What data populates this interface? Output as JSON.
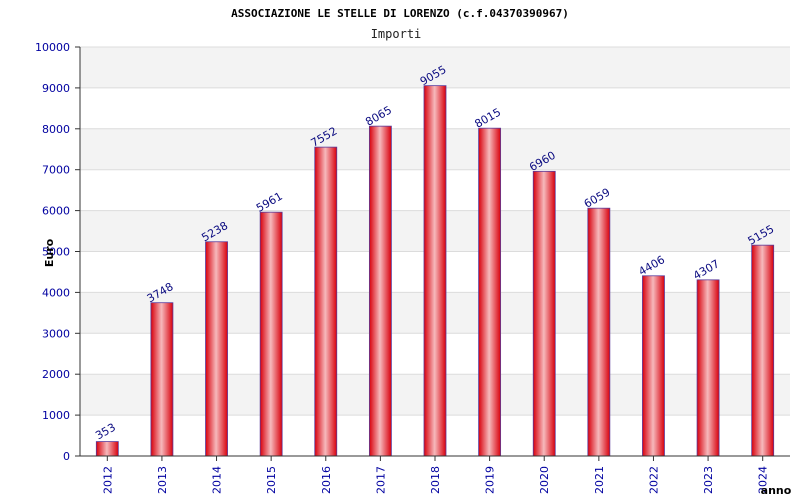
{
  "chart_data": {
    "type": "bar",
    "title": "ASSOCIAZIONE LE STELLE DI LORENZO (c.f.04370390967)",
    "subtitle": "Importi",
    "xlabel": "anno",
    "ylabel": "Euro",
    "categories": [
      "2012",
      "2013",
      "2014",
      "2015",
      "2016",
      "2017",
      "2018",
      "2019",
      "2020",
      "2021",
      "2022",
      "2023",
      "2024"
    ],
    "series": [
      {
        "values": [
          353,
          3748,
          5238,
          5961,
          7552,
          8065,
          9055,
          8015,
          6960,
          6059,
          4406,
          4307,
          5155
        ]
      }
    ],
    "ylim": [
      0,
      10000
    ],
    "yticks": [
      0,
      1000,
      2000,
      3000,
      4000,
      5000,
      6000,
      7000,
      8000,
      9000,
      10000
    ],
    "grid": true,
    "data_labels": true,
    "colors": {
      "bar": "#e8101a",
      "bar_highlight": "#f4b8bb",
      "bar_outline": "#5a3a9a",
      "axis_text": "#0000a0",
      "band": "#f3f3f3",
      "grid": "#dcdcdc"
    }
  }
}
